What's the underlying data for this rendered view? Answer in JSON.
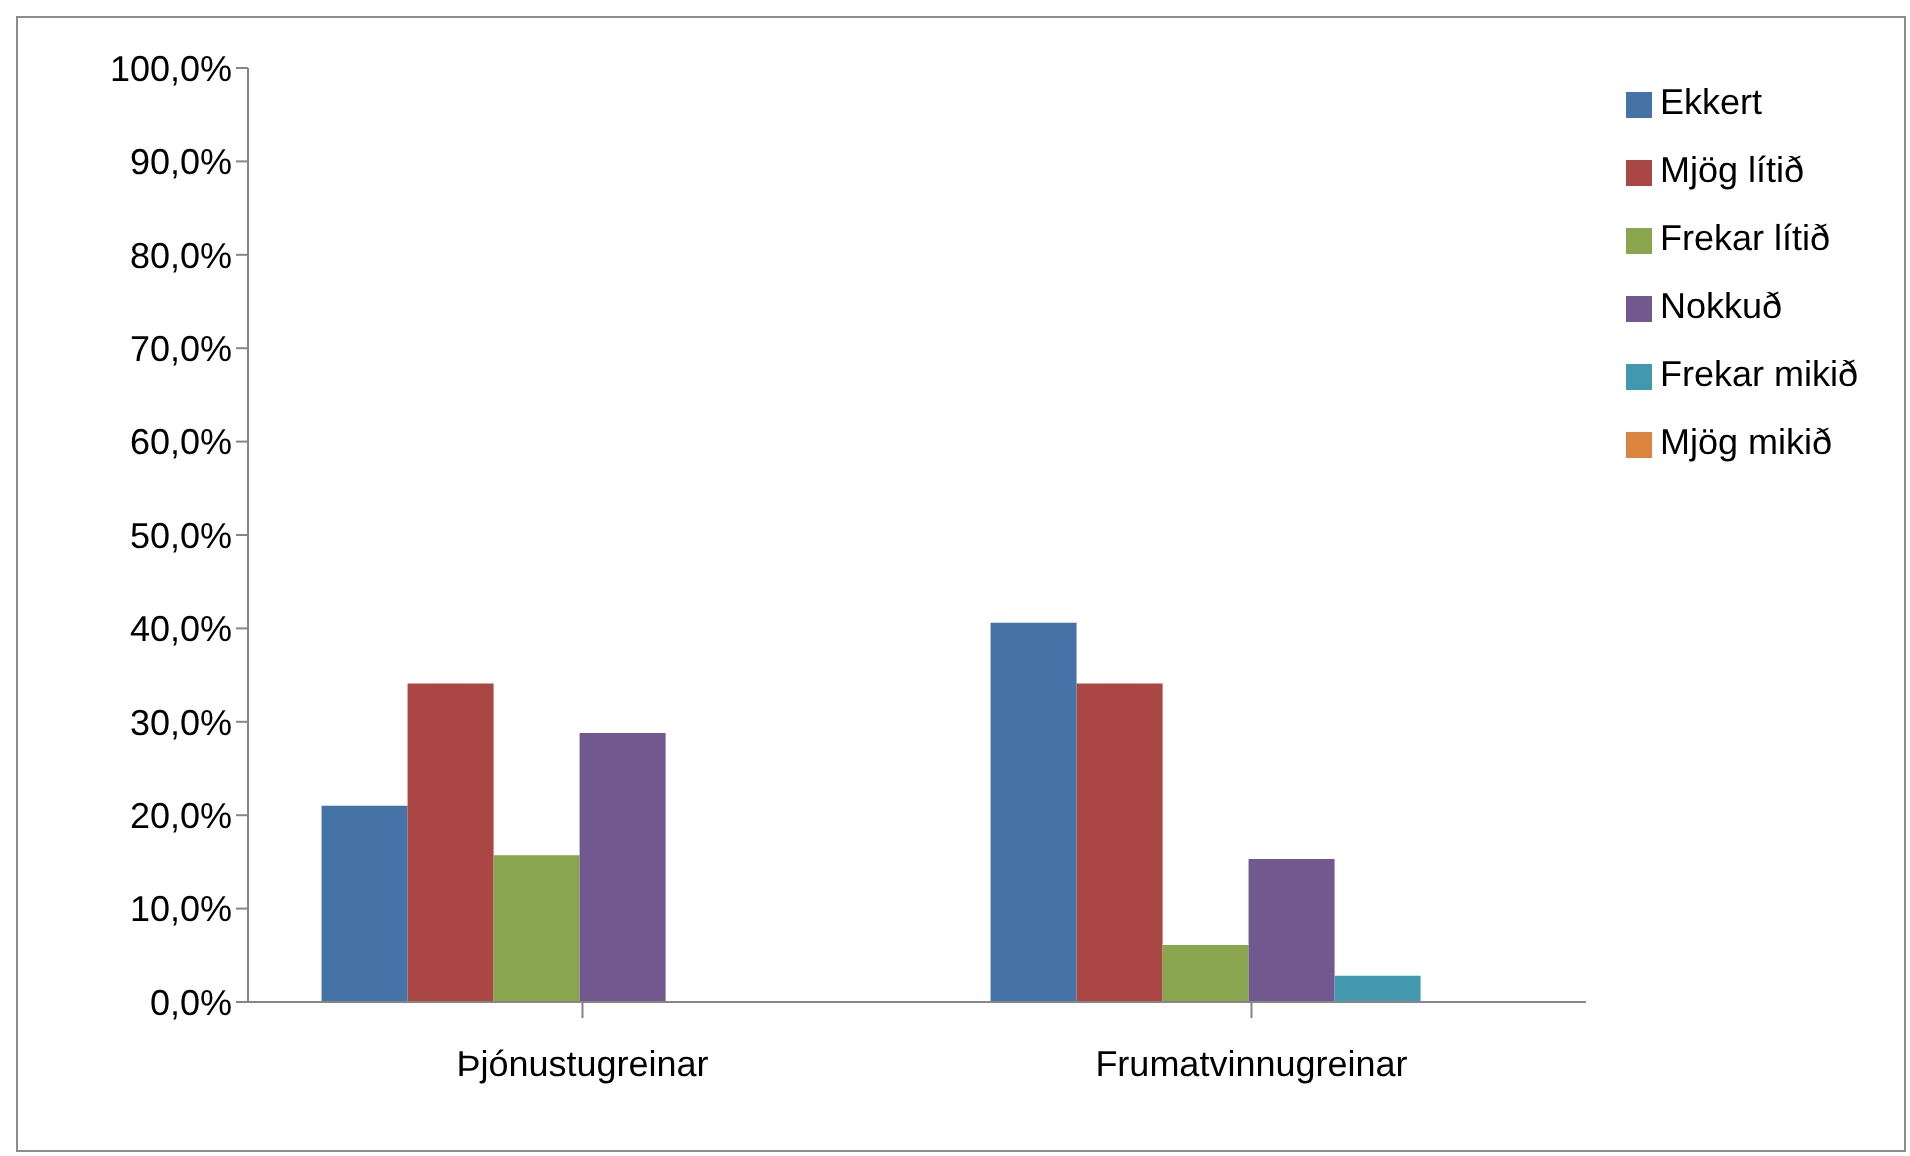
{
  "chart_data": {
    "type": "bar",
    "categories": [
      "Þjónustugreinar",
      "Frumatvinnugreinar"
    ],
    "series": [
      {
        "name": "Ekkert",
        "color": "#4572a7",
        "values": [
          21.0,
          40.6
        ]
      },
      {
        "name": "Mjög lítið",
        "color": "#aa4643",
        "values": [
          34.1,
          34.1
        ]
      },
      {
        "name": "Frekar lítið",
        "color": "#89a54e",
        "values": [
          15.7,
          6.1
        ]
      },
      {
        "name": "Nokkuð",
        "color": "#71588f",
        "values": [
          28.8,
          15.3
        ]
      },
      {
        "name": "Frekar mikið",
        "color": "#4198af",
        "values": [
          0,
          2.8
        ]
      },
      {
        "name": "Mjög mikið",
        "color": "#db843d",
        "values": [
          0,
          0
        ]
      }
    ],
    "ylim": [
      0,
      100
    ],
    "yticks": [
      {
        "value": 0,
        "label": "0,0%"
      },
      {
        "value": 10,
        "label": "10,0%"
      },
      {
        "value": 20,
        "label": "20,0%"
      },
      {
        "value": 30,
        "label": "30,0%"
      },
      {
        "value": 40,
        "label": "40,0%"
      },
      {
        "value": 50,
        "label": "50,0%"
      },
      {
        "value": 60,
        "label": "60,0%"
      },
      {
        "value": 70,
        "label": "70,0%"
      },
      {
        "value": 80,
        "label": "80,0%"
      },
      {
        "value": 90,
        "label": "90,0%"
      },
      {
        "value": 100,
        "label": "100,0%"
      }
    ],
    "grid": false,
    "legend": "right"
  }
}
